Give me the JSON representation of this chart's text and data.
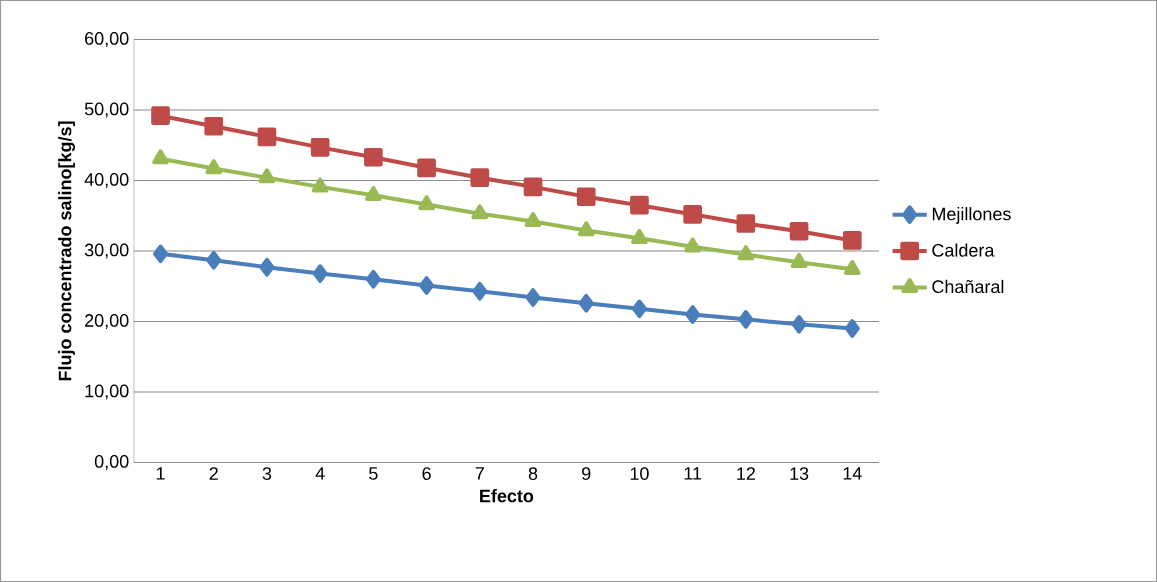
{
  "chart_data": {
    "type": "line",
    "xlabel": "Efecto",
    "ylabel": "Flujo concentrado salino[kg/s]",
    "categories": [
      "1",
      "2",
      "3",
      "4",
      "5",
      "6",
      "7",
      "8",
      "9",
      "10",
      "11",
      "12",
      "13",
      "14"
    ],
    "series": [
      {
        "name": "Mejillones",
        "color": "#4a7ebb",
        "marker": "diamond",
        "values": [
          29.6,
          28.7,
          27.7,
          26.8,
          26.0,
          25.1,
          24.3,
          23.4,
          22.6,
          21.8,
          21.0,
          20.3,
          19.6,
          19.0
        ]
      },
      {
        "name": "Caldera",
        "color": "#be4b48",
        "marker": "square",
        "values": [
          49.2,
          47.7,
          46.2,
          44.7,
          43.3,
          41.8,
          40.4,
          39.1,
          37.7,
          36.5,
          35.2,
          33.9,
          32.8,
          31.5
        ]
      },
      {
        "name": "Chañaral",
        "color": "#98b954",
        "marker": "triangle",
        "values": [
          43.1,
          41.7,
          40.4,
          39.1,
          37.9,
          36.6,
          35.3,
          34.2,
          32.9,
          31.8,
          30.6,
          29.5,
          28.4,
          27.4
        ]
      }
    ],
    "ylim": [
      0,
      60
    ],
    "yticks": [
      {
        "value": 0,
        "label": "0,00"
      },
      {
        "value": 10,
        "label": "10,00"
      },
      {
        "value": 20,
        "label": "20,00"
      },
      {
        "value": 30,
        "label": "30,00"
      },
      {
        "value": 40,
        "label": "40,00"
      },
      {
        "value": 50,
        "label": "50,00"
      },
      {
        "value": 60,
        "label": "60,00"
      }
    ],
    "grid": "y",
    "legend": "right",
    "line_style": "solid"
  }
}
